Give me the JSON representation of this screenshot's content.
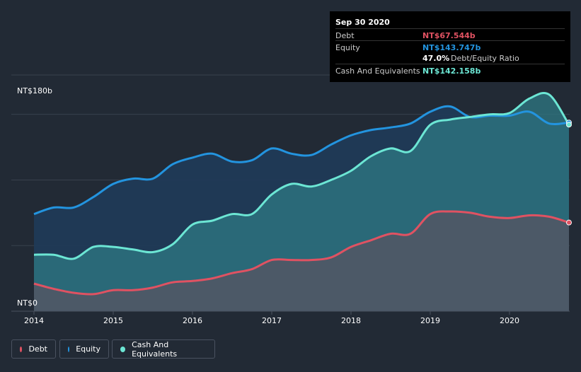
{
  "tooltip": {
    "date": "Sep 30 2020",
    "debt_label": "Debt",
    "debt_value": "NT$67.544b",
    "equity_label": "Equity",
    "equity_value": "NT$143.747b",
    "ratio_value": "47.0%",
    "ratio_label": "Debt/Equity Ratio",
    "cash_label": "Cash And Equivalents",
    "cash_value": "NT$142.158b"
  },
  "legend": {
    "debt": "Debt",
    "equity": "Equity",
    "cash": "Cash And Equivalents"
  },
  "colors": {
    "debt": "#e05262",
    "equity": "#2394df",
    "cash": "#6ce6d4",
    "background": "#222a35"
  },
  "chart_data": {
    "type": "area",
    "title": "",
    "y_top_label": "NT$180b",
    "y_bottom_label": "NT$0",
    "ylim": [
      0,
      180
    ],
    "xlim": [
      2014.0,
      2020.75
    ],
    "x_ticks": [
      "2014",
      "2015",
      "2016",
      "2017",
      "2018",
      "2019",
      "2020"
    ],
    "series": [
      {
        "name": "Equity",
        "x": [
          2014.0,
          2014.25,
          2014.5,
          2014.75,
          2015.0,
          2015.25,
          2015.5,
          2015.75,
          2016.0,
          2016.25,
          2016.5,
          2016.75,
          2017.0,
          2017.25,
          2017.5,
          2017.75,
          2018.0,
          2018.25,
          2018.5,
          2018.75,
          2019.0,
          2019.25,
          2019.5,
          2019.75,
          2020.0,
          2020.25,
          2020.5,
          2020.75
        ],
        "values": [
          74,
          79,
          79,
          87,
          97,
          101,
          101,
          112,
          117,
          120,
          114,
          115,
          124,
          120,
          119,
          127,
          134,
          138,
          140,
          143,
          152,
          156,
          148,
          149,
          149,
          152,
          143,
          143.747
        ]
      },
      {
        "name": "Cash And Equivalents",
        "x": [
          2014.0,
          2014.25,
          2014.5,
          2014.75,
          2015.0,
          2015.25,
          2015.5,
          2015.75,
          2016.0,
          2016.25,
          2016.5,
          2016.75,
          2017.0,
          2017.25,
          2017.5,
          2017.75,
          2018.0,
          2018.25,
          2018.5,
          2018.75,
          2019.0,
          2019.25,
          2019.5,
          2019.75,
          2020.0,
          2020.25,
          2020.5,
          2020.75
        ],
        "values": [
          43,
          43,
          40,
          49,
          49,
          47,
          45,
          51,
          66,
          69,
          74,
          74,
          89,
          97,
          95,
          100,
          107,
          118,
          124,
          122,
          142,
          146,
          148,
          150,
          151,
          162,
          165,
          142.158
        ]
      },
      {
        "name": "Debt",
        "x": [
          2014.0,
          2014.25,
          2014.5,
          2014.75,
          2015.0,
          2015.25,
          2015.5,
          2015.75,
          2016.0,
          2016.25,
          2016.5,
          2016.75,
          2017.0,
          2017.25,
          2017.5,
          2017.75,
          2018.0,
          2018.25,
          2018.5,
          2018.75,
          2019.0,
          2019.25,
          2019.5,
          2019.75,
          2020.0,
          2020.25,
          2020.5,
          2020.75
        ],
        "values": [
          21,
          17,
          14,
          13,
          16,
          16,
          18,
          22,
          23,
          25,
          29,
          32,
          39,
          39,
          39,
          41,
          49,
          54,
          59,
          59,
          74,
          76,
          75,
          72,
          71,
          73,
          72,
          67.544
        ]
      }
    ]
  }
}
